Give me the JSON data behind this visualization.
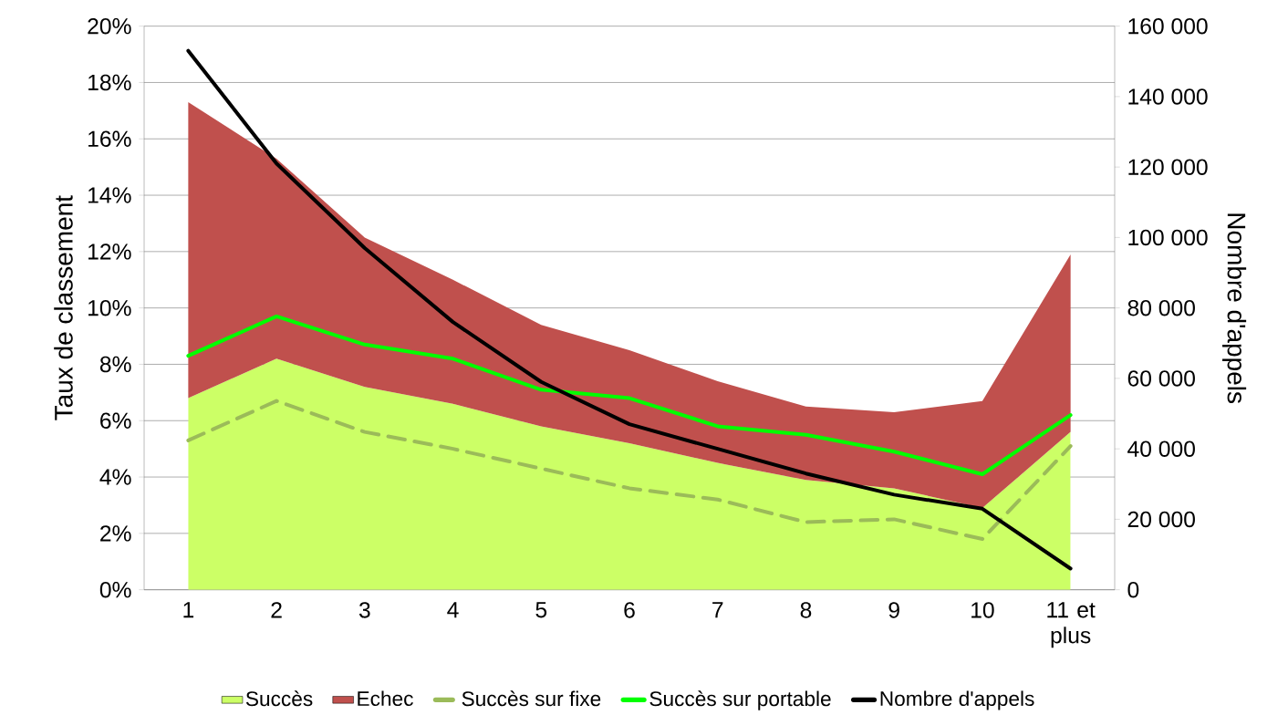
{
  "chart_data": {
    "type": "area",
    "stacked": true,
    "ylabel": "Taux de classement",
    "y2label": "Nombre d'appels",
    "grid": "y",
    "legend": "bottom",
    "categories": [
      "1",
      "2",
      "3",
      "4",
      "5",
      "6",
      "7",
      "8",
      "9",
      "10",
      "11 et plus"
    ],
    "series": [
      {
        "name": "Succès",
        "color": "#ccff66",
        "values": [
          6.8,
          8.2,
          7.2,
          6.6,
          5.8,
          5.2,
          4.5,
          3.9,
          3.6,
          2.9,
          5.6
        ]
      },
      {
        "name": "Echec",
        "color": "#c0504d",
        "values": [
          10.5,
          7.1,
          5.3,
          4.4,
          3.6,
          3.3,
          2.9,
          2.6,
          2.7,
          3.8,
          6.3
        ]
      },
      {
        "name": "Succès sur fixe",
        "type": "line",
        "line_style": "dashed",
        "color": "#9bbb59",
        "values": [
          5.3,
          6.7,
          5.6,
          5.0,
          4.3,
          3.6,
          3.2,
          2.4,
          2.5,
          1.8,
          5.1
        ]
      },
      {
        "name": "Succès sur portable",
        "type": "line",
        "line_style": "solid",
        "color": "#00ff00",
        "values": [
          8.3,
          9.7,
          8.7,
          8.2,
          7.1,
          6.8,
          5.8,
          5.5,
          4.9,
          4.1,
          6.2
        ]
      },
      {
        "name": "Nombre d'appels",
        "type": "line",
        "line_style": "solid",
        "axis": "y2",
        "color": "#000000",
        "values": [
          153000,
          121000,
          97000,
          76000,
          59000,
          47000,
          40000,
          33000,
          27000,
          23000,
          6000
        ]
      }
    ],
    "ylim": [
      0,
      20
    ],
    "yticks": [
      {
        "value": 0,
        "label": "0%"
      },
      {
        "value": 2,
        "label": "2%"
      },
      {
        "value": 4,
        "label": "4%"
      },
      {
        "value": 6,
        "label": "6%"
      },
      {
        "value": 8,
        "label": "8%"
      },
      {
        "value": 10,
        "label": "10%"
      },
      {
        "value": 12,
        "label": "12%"
      },
      {
        "value": 14,
        "label": "14%"
      },
      {
        "value": 16,
        "label": "16%"
      },
      {
        "value": 18,
        "label": "18%"
      },
      {
        "value": 20,
        "label": "20%"
      }
    ],
    "y2lim": [
      0,
      160000
    ],
    "y2ticks": [
      {
        "value": 0,
        "label": "0"
      },
      {
        "value": 20000,
        "label": "20 000"
      },
      {
        "value": 40000,
        "label": "40 000"
      },
      {
        "value": 60000,
        "label": "60 000"
      },
      {
        "value": 80000,
        "label": "80 000"
      },
      {
        "value": 100000,
        "label": "100 000"
      },
      {
        "value": 120000,
        "label": "120 000"
      },
      {
        "value": 140000,
        "label": "140 000"
      },
      {
        "value": 160000,
        "label": "160 000"
      }
    ]
  }
}
